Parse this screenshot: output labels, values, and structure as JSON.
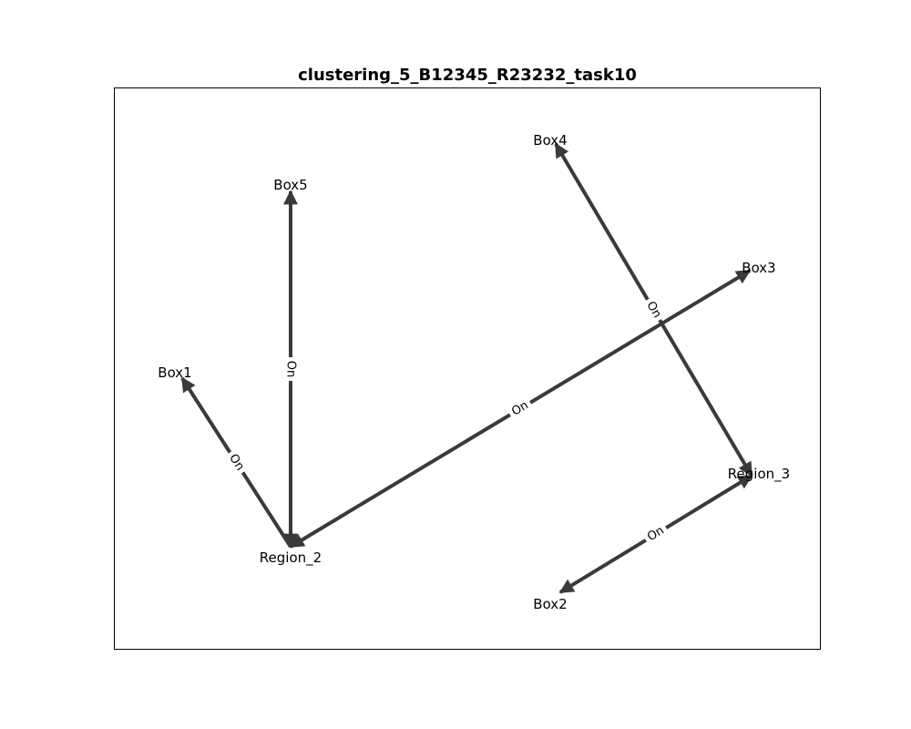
{
  "title": "clustering_5_B12345_R23232_task10",
  "nodes": [
    {
      "id": "box1",
      "label": "Box1"
    },
    {
      "id": "box2",
      "label": "Box2"
    },
    {
      "id": "box3",
      "label": "Box3"
    },
    {
      "id": "box4",
      "label": "Box4"
    },
    {
      "id": "box5",
      "label": "Box5"
    },
    {
      "id": "region_2",
      "label": "Region_2"
    },
    {
      "id": "region_3",
      "label": "Region_3"
    }
  ],
  "edges": [
    {
      "from": "region_2",
      "to": "box1",
      "label": "On"
    },
    {
      "from": "box5",
      "to": "region_2",
      "label": "On"
    },
    {
      "from": "region_2",
      "to": "box5",
      "label": "On"
    },
    {
      "from": "box3",
      "to": "region_2",
      "label": "On"
    },
    {
      "from": "region_2",
      "to": "box3",
      "label": "On"
    },
    {
      "from": "box4",
      "to": "region_3",
      "label": "On"
    },
    {
      "from": "region_3",
      "to": "box4",
      "label": "On"
    },
    {
      "from": "box2",
      "to": "region_3",
      "label": "On"
    },
    {
      "from": "region_3",
      "to": "box2",
      "label": "On"
    }
  ],
  "colors": {
    "edge": "#3a3a3a",
    "frame": "#000000"
  }
}
